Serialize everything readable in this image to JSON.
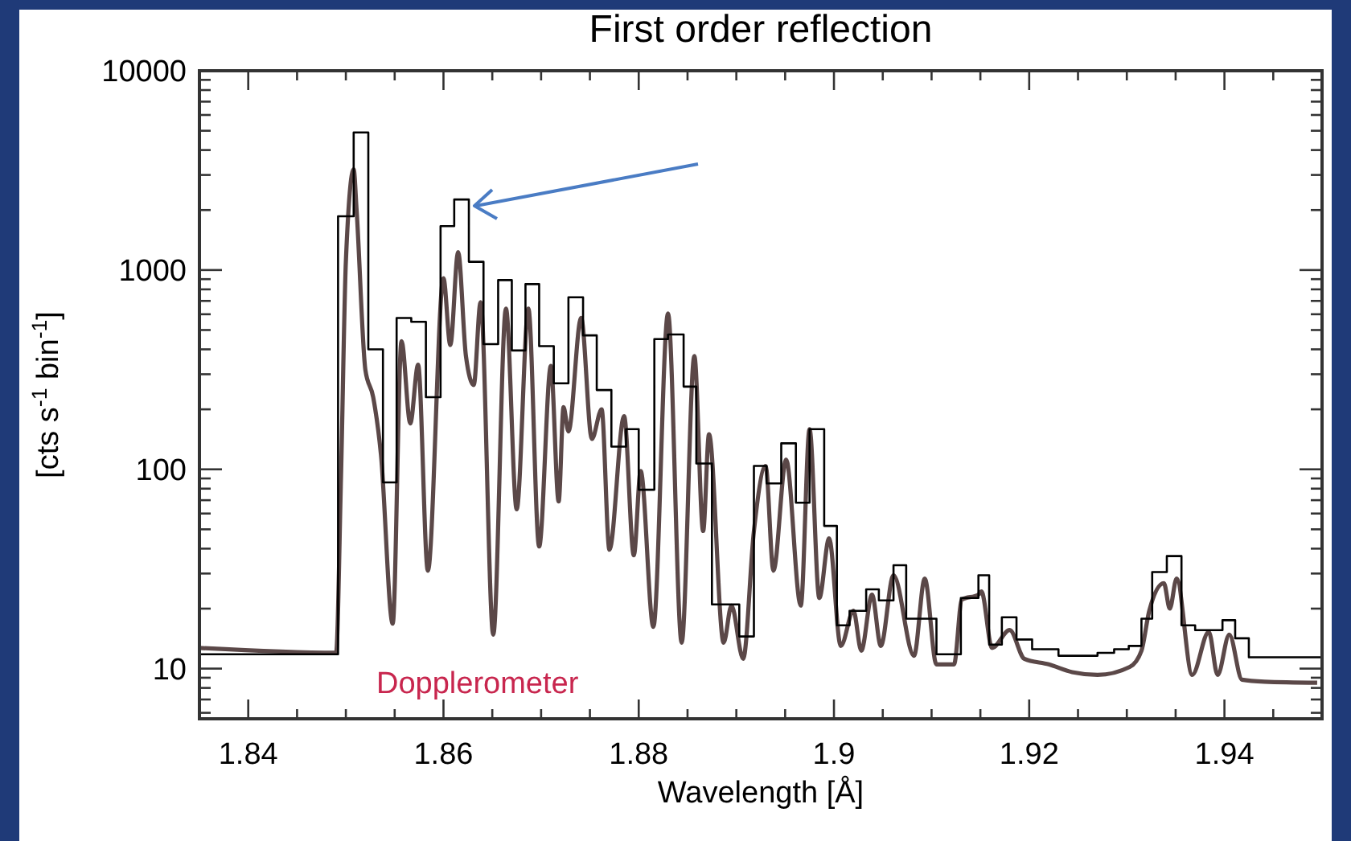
{
  "chart_data": {
    "type": "line",
    "title": "First order reflection",
    "xlabel": "Wavelength [Å]",
    "ylabel": "[cts s$^{-1}$ bin$^{-1}$]",
    "log": "y",
    "grid": false,
    "xlim": [
      1.835,
      1.95
    ],
    "ylim": [
      5.6,
      10000
    ],
    "xticks": [
      1.84,
      {
        "value": 1.845,
        "label": null
      },
      1.86,
      {
        "value": 1.855,
        "label": null
      },
      {
        "value": 1.85,
        "label": null
      },
      {
        "value": 1.865,
        "label": null
      },
      1.88,
      {
        "value": 1.87,
        "label": null
      },
      {
        "value": 1.875,
        "label": null
      },
      {
        "value": 1.885,
        "label": null
      },
      1.9,
      {
        "value": 1.89,
        "label": null
      },
      {
        "value": 1.895,
        "label": null
      },
      {
        "value": 1.905,
        "label": null
      },
      1.92,
      {
        "value": 1.91,
        "label": null
      },
      {
        "value": 1.915,
        "label": null
      },
      {
        "value": 1.925,
        "label": null
      },
      1.94,
      {
        "value": 1.93,
        "label": null
      },
      {
        "value": 1.935,
        "label": null
      },
      {
        "value": 1.945,
        "label": null
      }
    ],
    "yticks": [
      {
        "value": 6,
        "label": null
      },
      {
        "value": 7,
        "label": null
      },
      {
        "value": 8,
        "label": null
      },
      {
        "value": 9,
        "label": null
      },
      10,
      {
        "value": 20,
        "label": null
      },
      {
        "value": 30,
        "label": null
      },
      {
        "value": 40,
        "label": null
      },
      {
        "value": 50,
        "label": null
      },
      {
        "value": 60,
        "label": null
      },
      {
        "value": 70,
        "label": null
      },
      {
        "value": 80,
        "label": null
      },
      {
        "value": 90,
        "label": null
      },
      100,
      {
        "value": 200,
        "label": null
      },
      {
        "value": 300,
        "label": null
      },
      {
        "value": 400,
        "label": null
      },
      {
        "value": 500,
        "label": null
      },
      {
        "value": 600,
        "label": null
      },
      {
        "value": 700,
        "label": null
      },
      {
        "value": 800,
        "label": null
      },
      {
        "value": 900,
        "label": null
      },
      1000,
      {
        "value": 2000,
        "label": null
      },
      {
        "value": 3000,
        "label": null
      },
      {
        "value": 4000,
        "label": null
      },
      {
        "value": 5000,
        "label": null
      },
      {
        "value": 6000,
        "label": null
      },
      {
        "value": 7000,
        "label": null
      },
      {
        "value": 8000,
        "label": null
      },
      {
        "value": 9000,
        "label": null
      },
      10000
    ],
    "annotations": [
      "Dopplerometer"
    ],
    "series": [
      {
        "type": "step",
        "color": "#000000",
        "x": [
          1.835,
          1.8492,
          1.8508,
          1.8523,
          1.8538,
          1.8552,
          1.8567,
          1.8582,
          1.8597,
          1.8611,
          1.8626,
          1.8641,
          1.8656,
          1.867,
          1.8684,
          1.8698,
          1.8713,
          1.8728,
          1.8743,
          1.8757,
          1.8772,
          1.8787,
          1.88,
          1.8816,
          1.883,
          1.8846,
          1.8859,
          1.8875,
          1.8903,
          1.8918,
          1.8931,
          1.8946,
          1.8961,
          1.8975,
          1.899,
          1.9003,
          1.9016,
          1.9033,
          1.9046,
          1.9061,
          1.9074,
          1.9105,
          1.913,
          1.9148,
          1.9159,
          1.9172,
          1.9187,
          1.9203,
          1.923,
          1.927,
          1.9287,
          1.9302,
          1.9315,
          1.9326,
          1.9341,
          1.9356,
          1.937,
          1.9398,
          1.9411,
          1.9425,
          1.95
        ],
        "values": [
          11.8,
          1860,
          4900,
          400,
          86,
          575,
          550,
          230,
          1660,
          2260,
          1100,
          425,
          890,
          395,
          850,
          415,
          270,
          730,
          470,
          250,
          130,
          159,
          79,
          450,
          475,
          260,
          107,
          21,
          14.5,
          104,
          85,
          135,
          68,
          159,
          52,
          16.5,
          19.5,
          25,
          22,
          33,
          17.8,
          11.8,
          22.6,
          29.4,
          13.2,
          18.1,
          14,
          12.5,
          11.6,
          12,
          12.5,
          13,
          17.8,
          30.5,
          36.7,
          16.5,
          15.6,
          17.5,
          14.2,
          11.4,
          11.4
        ]
      },
      {
        "color": "#5b4848",
        "x": [
          1.835,
          1.849,
          1.8495,
          1.85,
          1.8508,
          1.8511,
          1.852,
          1.8528,
          1.8536,
          1.8548,
          1.8557,
          1.8566,
          1.8574,
          1.8584,
          1.86,
          1.8607,
          1.8615,
          1.8623,
          1.8631,
          1.8638,
          1.8651,
          1.8664,
          1.8675,
          1.8687,
          1.8698,
          1.871,
          1.8718,
          1.8723,
          1.8728,
          1.8741,
          1.8752,
          1.8762,
          1.877,
          1.8785,
          1.8795,
          1.8802,
          1.8815,
          1.883,
          1.8844,
          1.8857,
          1.8866,
          1.8872,
          1.8887,
          1.8895,
          1.8907,
          1.8918,
          1.893,
          1.8938,
          1.8951,
          1.8966,
          1.8975,
          1.8985,
          1.8995,
          1.9007,
          1.902,
          1.9028,
          1.9039,
          1.9048,
          1.9061,
          1.9082,
          1.9093,
          1.9105,
          1.9123,
          1.9131,
          1.9148,
          1.9151,
          1.9162,
          1.918,
          1.9195,
          1.922,
          1.9244,
          1.927,
          1.9303,
          1.9315,
          1.9323,
          1.9338,
          1.9344,
          1.9351,
          1.9367,
          1.9384,
          1.9393,
          1.9405,
          1.9418,
          1.9441,
          1.9495
        ],
        "values": [
          12.7,
          12,
          91,
          1100,
          3200,
          2000,
          315,
          230,
          118,
          16.8,
          440,
          170,
          335,
          31,
          910,
          420,
          1230,
          370,
          265,
          690,
          14.8,
          640,
          63,
          640,
          41,
          330,
          69,
          205,
          155,
          575,
          142,
          200,
          39.5,
          185,
          37,
          98,
          16.2,
          605,
          13.5,
          370,
          49,
          150,
          13.5,
          20.7,
          11.2,
          49,
          104,
          31,
          112,
          20.7,
          159,
          22.6,
          45,
          13,
          19.5,
          12.3,
          23.5,
          13,
          29.4,
          11.6,
          28.3,
          10.5,
          10.5,
          22.2,
          23.5,
          24.4,
          12.7,
          15.6,
          11.2,
          10.5,
          9.6,
          9.3,
          10.2,
          12.3,
          19.5,
          26.8,
          20,
          28.3,
          9.3,
          15.3,
          9.3,
          14.8,
          8.8,
          8.6,
          8.5
        ]
      }
    ]
  }
}
